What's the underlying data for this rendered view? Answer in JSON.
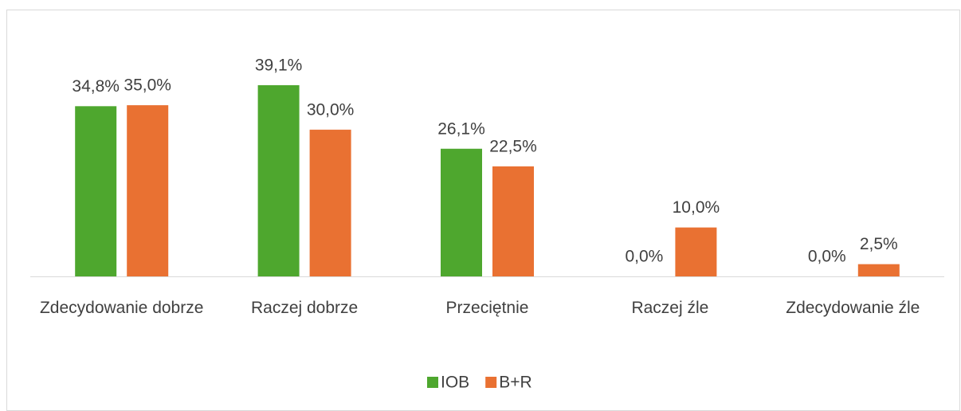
{
  "chart_data": {
    "type": "bar",
    "categories": [
      "Zdecydowanie dobrze",
      "Raczej dobrze",
      "Przeciętnie",
      "Raczej źle",
      "Zdecydowanie źle"
    ],
    "series": [
      {
        "name": "IOB",
        "color": "#4ea72e",
        "values": [
          34.8,
          39.1,
          26.1,
          0,
          0
        ],
        "value_labels": [
          "34,8%",
          "39,1%",
          "26,1%",
          "0,0%",
          "0,0%"
        ]
      },
      {
        "name": "B+R",
        "color": "#e97132",
        "values": [
          35.0,
          30.0,
          22.5,
          10.0,
          2.5
        ],
        "value_labels": [
          "35,0%",
          "30,0%",
          "22,5%",
          "10,0%",
          "2,5%"
        ]
      }
    ],
    "legend": "bottom"
  }
}
